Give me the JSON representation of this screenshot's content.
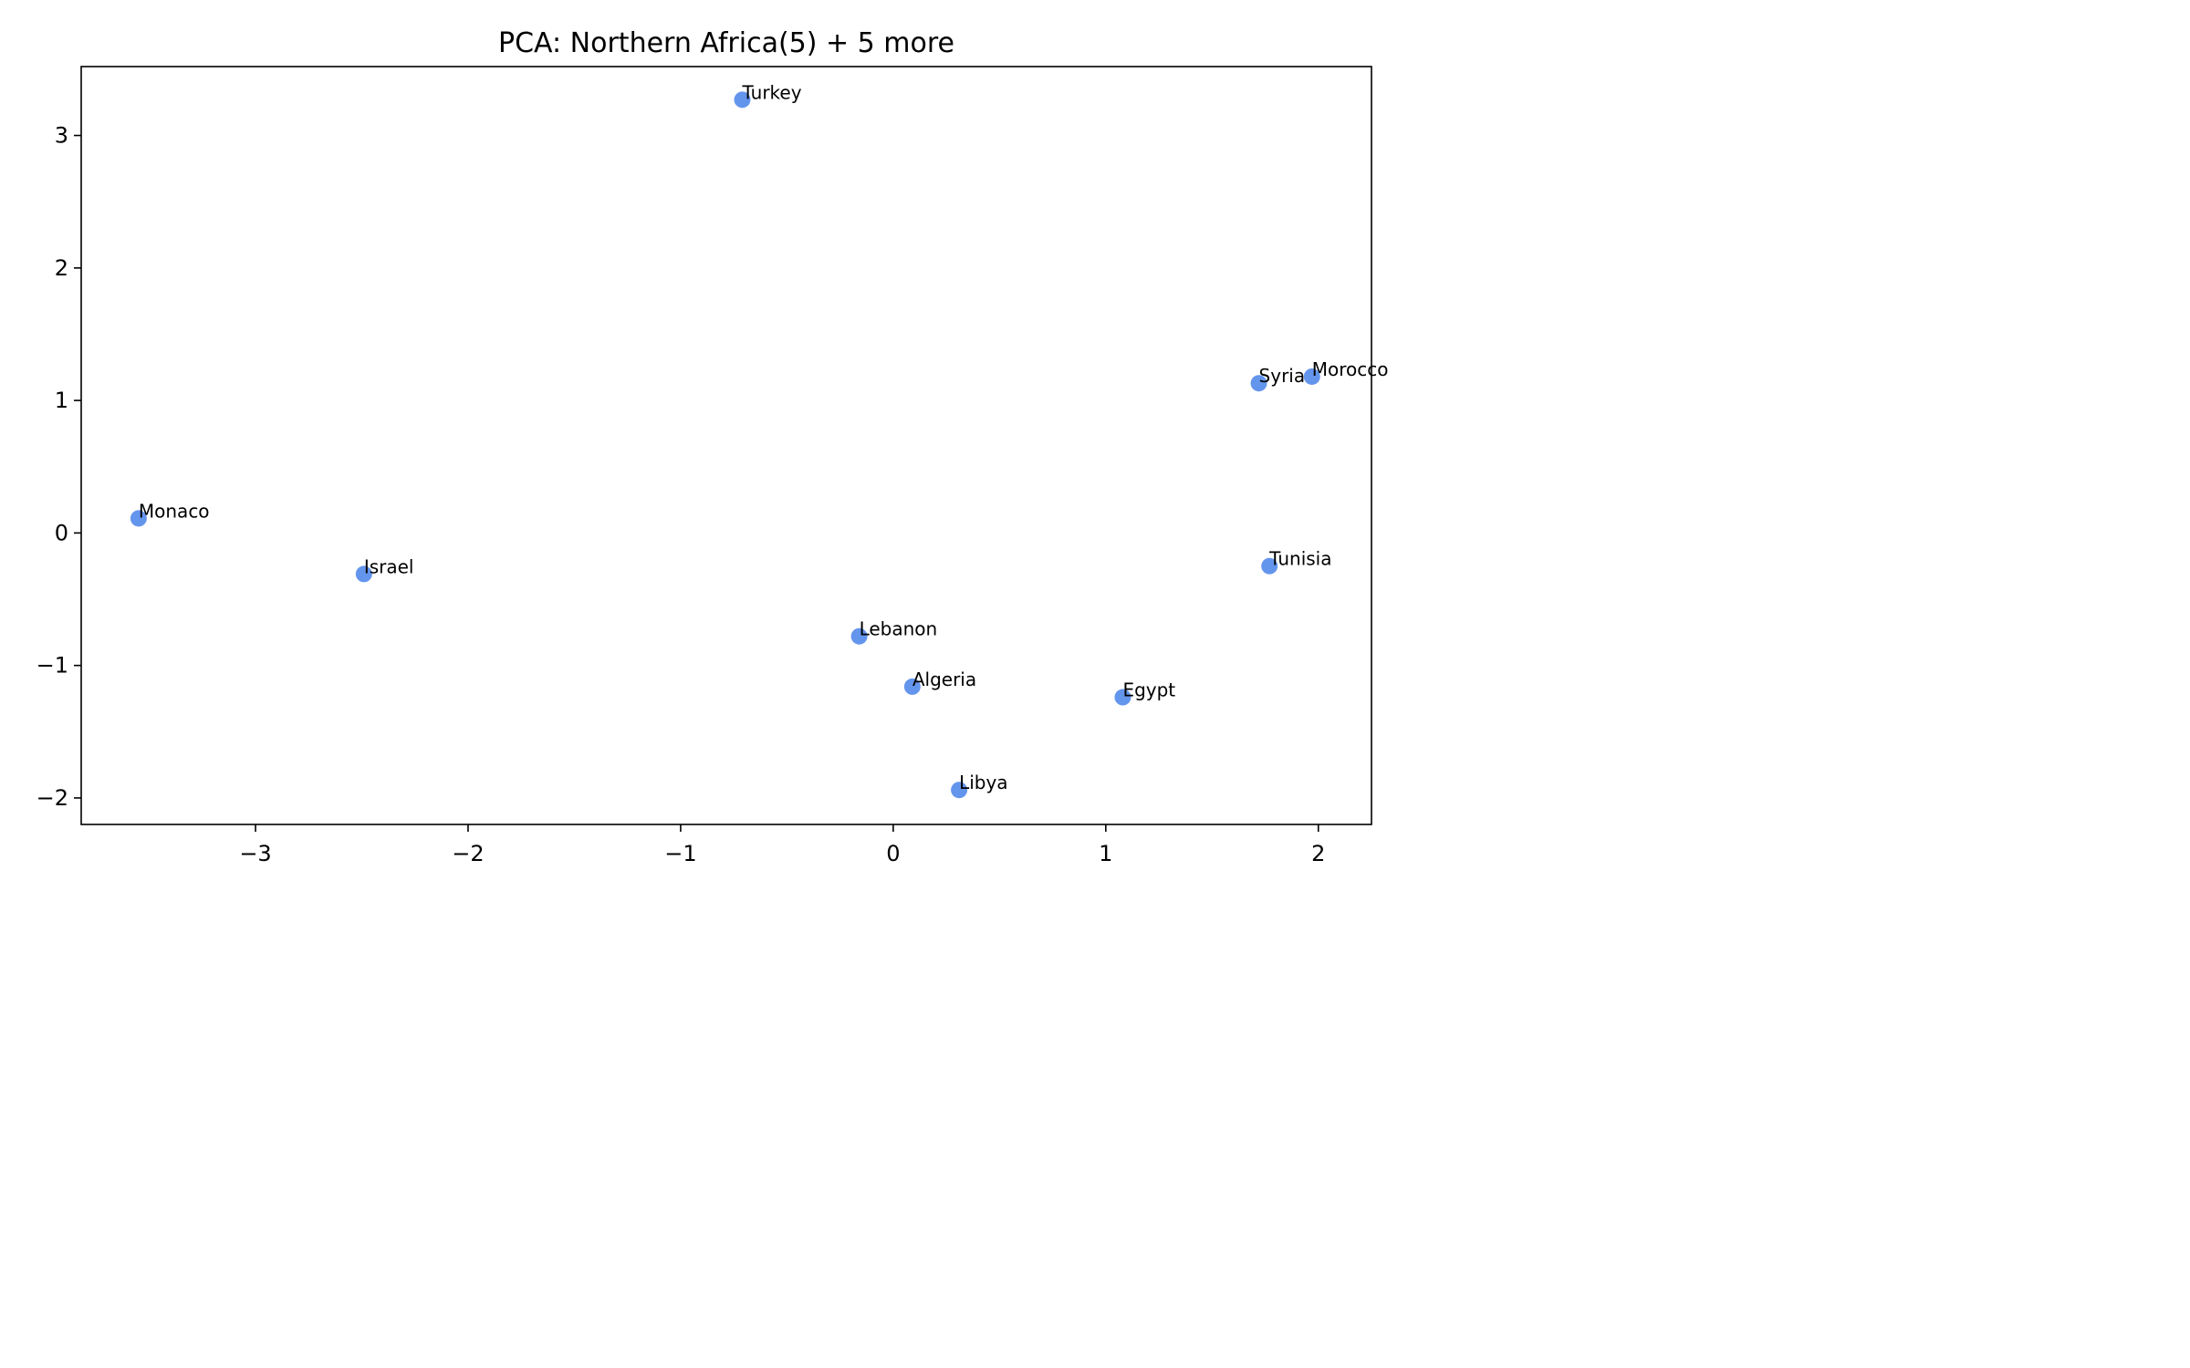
{
  "chart_data": {
    "type": "scatter",
    "title": "PCA: Northern Africa(5) + 5 more",
    "xlabel": "",
    "ylabel": "",
    "xlim": [
      -3.82,
      2.25
    ],
    "ylim": [
      -2.2,
      3.52
    ],
    "xticks": [
      -3,
      -2,
      -1,
      0,
      1,
      2
    ],
    "xtick_labels": [
      "−3",
      "−2",
      "−1",
      "0",
      "1",
      "2"
    ],
    "yticks": [
      -2,
      -1,
      0,
      1,
      2,
      3
    ],
    "ytick_labels": [
      "−2",
      "−1",
      "0",
      "1",
      "2",
      "3"
    ],
    "grid": false,
    "point_color": "#6495ED",
    "points": [
      {
        "label": "Turkey",
        "x": -0.71,
        "y": 3.27
      },
      {
        "label": "Syria",
        "x": 1.72,
        "y": 1.13
      },
      {
        "label": "Morocco",
        "x": 1.97,
        "y": 1.18
      },
      {
        "label": "Monaco",
        "x": -3.55,
        "y": 0.11
      },
      {
        "label": "Israel",
        "x": -2.49,
        "y": -0.31
      },
      {
        "label": "Tunisia",
        "x": 1.77,
        "y": -0.25
      },
      {
        "label": "Lebanon",
        "x": -0.16,
        "y": -0.78
      },
      {
        "label": "Algeria",
        "x": 0.09,
        "y": -1.16
      },
      {
        "label": "Egypt",
        "x": 1.08,
        "y": -1.24
      },
      {
        "label": "Libya",
        "x": 0.31,
        "y": -1.94
      }
    ]
  }
}
